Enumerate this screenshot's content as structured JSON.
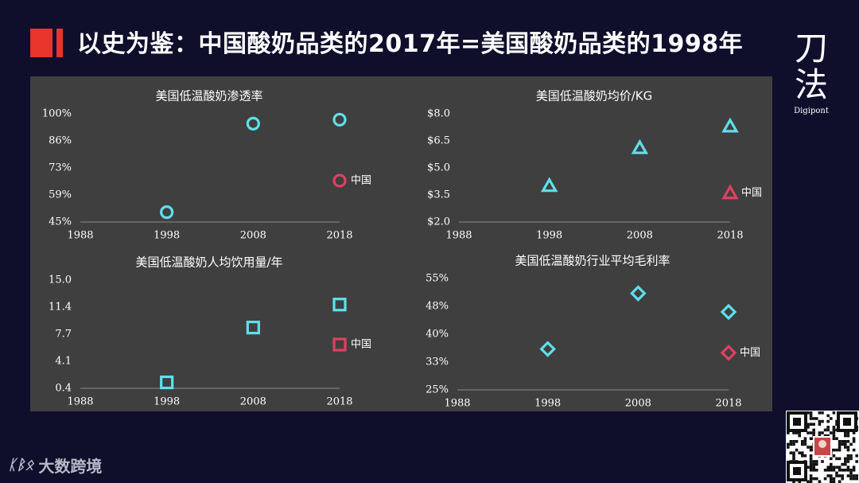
{
  "page_title": "以史为鉴：中国酸奶品类的2017年=美国酸奶品类的1998年",
  "brand": {
    "mark": "刀法",
    "sub": "Digipont"
  },
  "watermark": {
    "logo": "ᛕᛒᛟ",
    "text": "大数跨境"
  },
  "colors": {
    "us": "#5ee0ea",
    "china": "#e04060",
    "title_mark": "#e8342b"
  },
  "chart_data": [
    {
      "type": "scatter",
      "title": "美国低温酸奶渗透率",
      "marker": "circle",
      "x_ticks": [
        "1988",
        "1998",
        "2008",
        "2018"
      ],
      "y_ticks": [
        "45%",
        "59%",
        "73%",
        "86%",
        "100%"
      ],
      "ylim": [
        45,
        100
      ],
      "series": [
        {
          "points": [
            {
              "x": 1998,
              "y": 50
            },
            {
              "x": 2008,
              "y": 95
            },
            {
              "x": 2018,
              "y": 97
            }
          ]
        },
        {
          "name": "中国",
          "points": [
            {
              "x": 2018,
              "y": 66
            }
          ]
        }
      ]
    },
    {
      "type": "scatter",
      "title": "美国低温酸奶均价/KG",
      "marker": "triangle",
      "x_ticks": [
        "1988",
        "1998",
        "2008",
        "2018"
      ],
      "y_ticks": [
        "$2.0",
        "$3.5",
        "$5.0",
        "$6.5",
        "$8.0"
      ],
      "ylim": [
        2.0,
        8.0
      ],
      "series": [
        {
          "points": [
            {
              "x": 1998,
              "y": 4.0
            },
            {
              "x": 2008,
              "y": 6.1
            },
            {
              "x": 2018,
              "y": 7.3
            }
          ]
        },
        {
          "name": "中国",
          "points": [
            {
              "x": 2018,
              "y": 3.6
            }
          ]
        }
      ]
    },
    {
      "type": "scatter",
      "title": "美国低温酸奶人均饮用量/年",
      "marker": "square",
      "x_ticks": [
        "1988",
        "1998",
        "2008",
        "2018"
      ],
      "y_ticks": [
        "0.4",
        "4.1",
        "7.7",
        "11.4",
        "15.0"
      ],
      "ylim": [
        0.4,
        15.0
      ],
      "series": [
        {
          "points": [
            {
              "x": 1998,
              "y": 1.2
            },
            {
              "x": 2008,
              "y": 8.6
            },
            {
              "x": 2018,
              "y": 11.7
            }
          ]
        },
        {
          "name": "中国",
          "points": [
            {
              "x": 2018,
              "y": 6.3
            }
          ]
        }
      ]
    },
    {
      "type": "scatter",
      "title": "美国低温酸奶行业平均毛利率",
      "marker": "diamond",
      "x_ticks": [
        "1988",
        "1998",
        "2008",
        "2018"
      ],
      "y_ticks": [
        "25%",
        "33%",
        "40%",
        "48%",
        "55%"
      ],
      "ylim": [
        25,
        55
      ],
      "series": [
        {
          "points": [
            {
              "x": 1998,
              "y": 36
            },
            {
              "x": 2008,
              "y": 51
            },
            {
              "x": 2018,
              "y": 46
            }
          ]
        },
        {
          "name": "中国",
          "points": [
            {
              "x": 2018,
              "y": 35
            }
          ]
        }
      ]
    }
  ]
}
